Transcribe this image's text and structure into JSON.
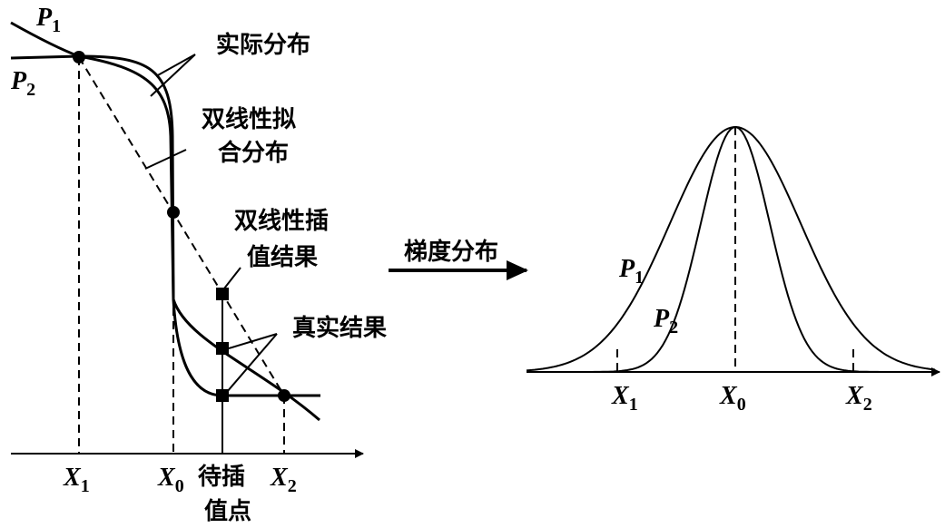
{
  "left_panel": {
    "curve_labels": [
      {
        "symbol": "P",
        "sub": "1"
      },
      {
        "symbol": "P",
        "sub": "2"
      }
    ],
    "annotations": {
      "actual": "实际分布",
      "bilinear_fit": [
        "双线性拟",
        "合分布"
      ],
      "bilinear_interp": [
        "双线性插",
        "值结果"
      ],
      "true_result": "真实结果"
    },
    "x_labels": [
      {
        "symbol": "X",
        "sub": "1"
      },
      {
        "symbol": "X",
        "sub": "0"
      },
      {
        "symbol": "X",
        "sub": "2"
      }
    ],
    "interp_point": [
      "待插",
      "值点"
    ]
  },
  "arrow_label": "梯度分布",
  "right_panel": {
    "curve_labels": [
      {
        "symbol": "P",
        "sub": "1"
      },
      {
        "symbol": "P",
        "sub": "2"
      }
    ],
    "x_labels": [
      {
        "symbol": "X",
        "sub": "1"
      },
      {
        "symbol": "X",
        "sub": "0"
      },
      {
        "symbol": "X",
        "sub": "2"
      }
    ]
  }
}
